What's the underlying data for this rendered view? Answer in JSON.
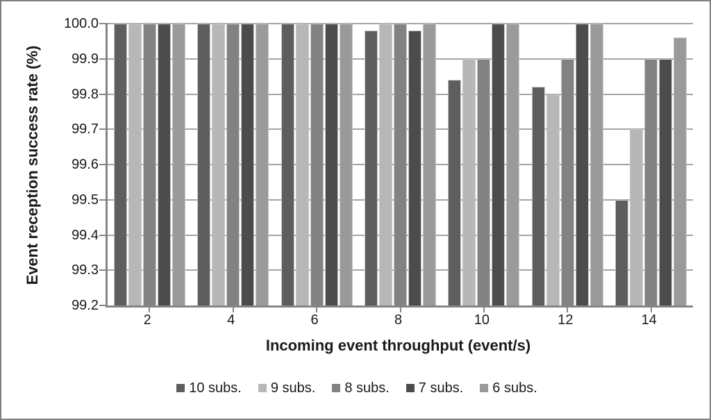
{
  "chart_data": {
    "type": "bar",
    "title": "",
    "xlabel": "Incoming event throughput (event/s)",
    "ylabel": "Event reception success rate (%)",
    "categories": [
      "2",
      "4",
      "6",
      "8",
      "10",
      "12",
      "14"
    ],
    "series": [
      {
        "name": "10 subs.",
        "color": "#5e5e5e",
        "values": [
          100.0,
          100.0,
          100.0,
          99.98,
          99.84,
          99.82,
          99.5
        ]
      },
      {
        "name": "9 subs.",
        "color": "#b7b7b7",
        "values": [
          100.0,
          100.0,
          100.0,
          100.0,
          99.9,
          99.8,
          99.7
        ]
      },
      {
        "name": "8 subs.",
        "color": "#828282",
        "values": [
          100.0,
          100.0,
          100.0,
          100.0,
          99.9,
          99.9,
          99.9
        ]
      },
      {
        "name": "7 subs.",
        "color": "#4c4c4c",
        "values": [
          100.0,
          100.0,
          100.0,
          99.98,
          100.0,
          100.0,
          99.9
        ]
      },
      {
        "name": "6 subs.",
        "color": "#9a9a9a",
        "values": [
          100.0,
          100.0,
          100.0,
          100.0,
          100.0,
          100.0,
          99.96
        ]
      }
    ],
    "ylim": [
      99.2,
      100.0
    ],
    "ytick_step": 0.1,
    "yticks": [
      "100.0",
      "99.9",
      "99.8",
      "99.7",
      "99.6",
      "99.5",
      "99.4",
      "99.3",
      "99.2"
    ],
    "grid": true,
    "legend_position": "bottom",
    "colors": {
      "gridline": "#a3a3a3",
      "axis": "#858585",
      "frame": "#7f7f7f",
      "text": "#1a1a1a",
      "bar_border": "#c9c9c9"
    }
  }
}
